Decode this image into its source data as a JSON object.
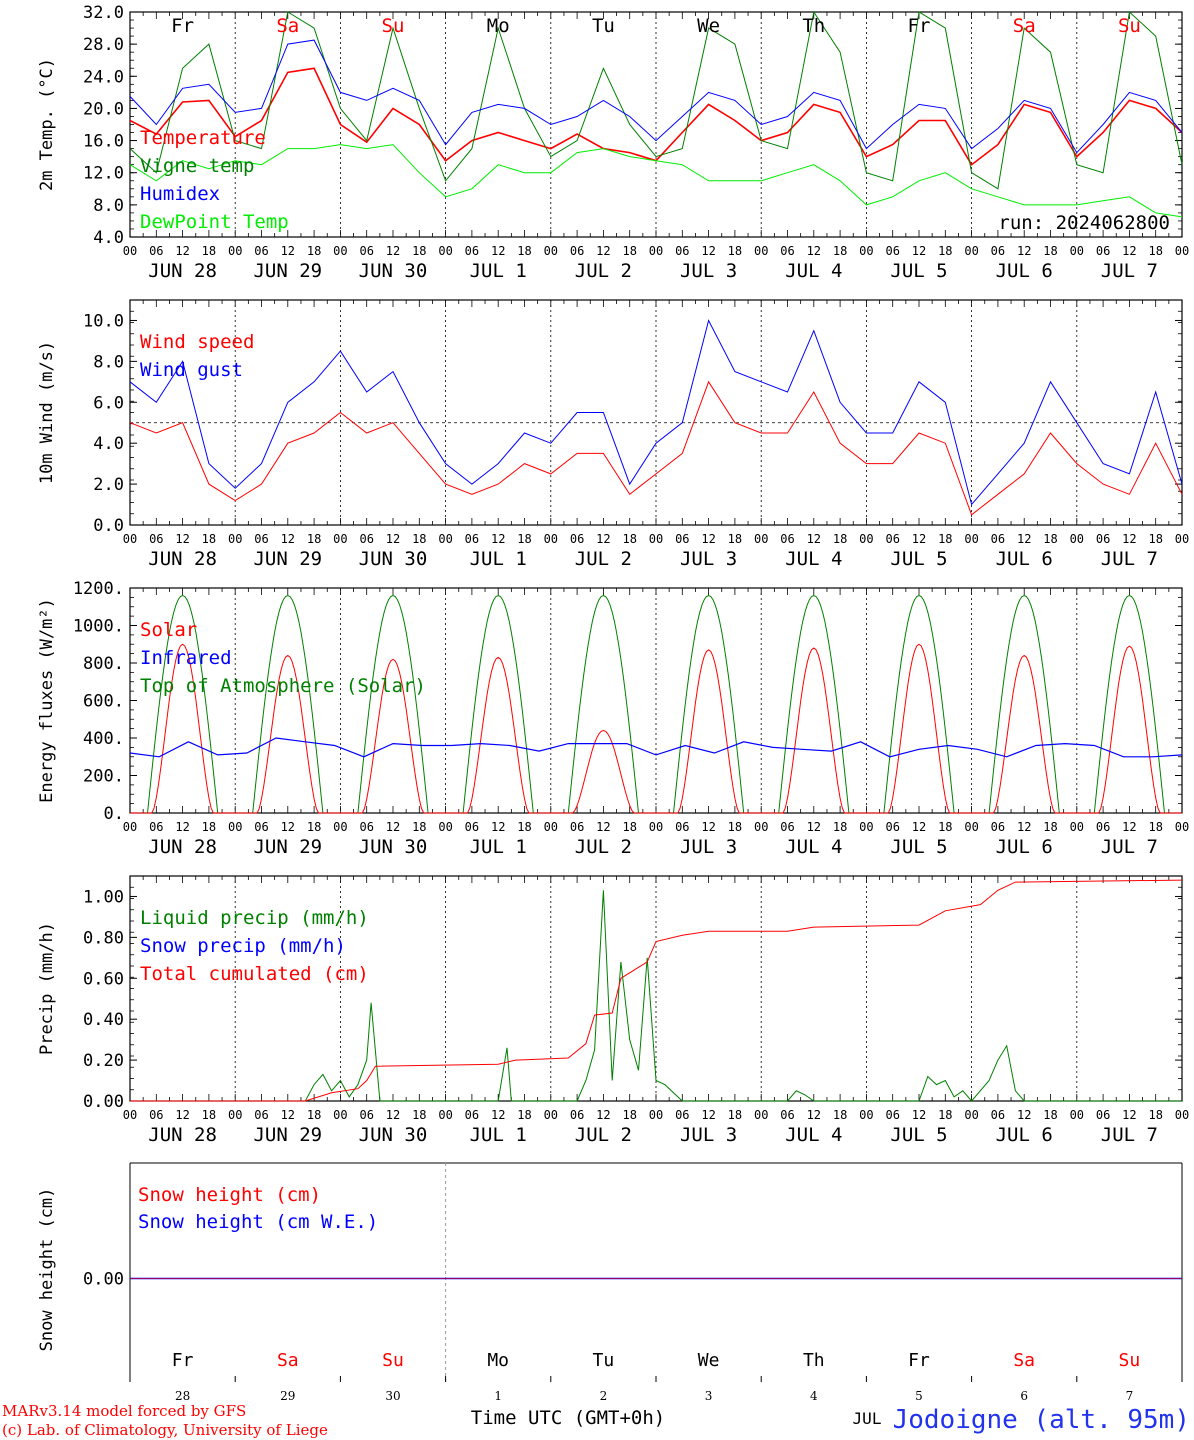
{
  "chart_data": [
    {
      "type": "line",
      "ylabel": "2m Temp. (°C)",
      "ylim": [
        4.0,
        32.0
      ],
      "yticks": [
        "4.0",
        "8.0",
        "12.0",
        "16.0",
        "20.0",
        "24.0",
        "28.0",
        "32.0"
      ],
      "legend_placement": "left",
      "day_names": [
        "Fr",
        "Sa",
        "Su",
        "Mo",
        "Tu",
        "We",
        "Th",
        "Fr",
        "Sa",
        "Su"
      ],
      "run_label": "run: 2024062800",
      "x_hours": [
        0,
        6,
        12,
        18,
        24,
        30,
        36,
        42,
        48,
        54,
        60,
        66,
        72,
        78,
        84,
        90,
        96,
        102,
        108,
        114,
        120,
        126,
        132,
        138,
        144,
        150,
        156,
        162,
        168,
        174,
        180,
        186,
        192,
        198,
        204,
        210,
        216,
        222,
        228,
        234,
        240
      ],
      "series": [
        {
          "name": "Temperature",
          "color": "#ff0000",
          "values": [
            18.5,
            16.8,
            20.8,
            21.0,
            16.5,
            18.5,
            24.5,
            25.0,
            18.0,
            15.8,
            20.0,
            18.0,
            13.5,
            16.0,
            17.0,
            16.0,
            15.0,
            16.8,
            15.0,
            14.5,
            13.5,
            17.0,
            20.5,
            18.5,
            16.0,
            17.0,
            20.5,
            19.5,
            14.0,
            15.5,
            18.5,
            18.5,
            13.0,
            15.5,
            20.5,
            19.5,
            14.0,
            17.0,
            21.0,
            20.0,
            17.0
          ]
        },
        {
          "name": "Vigne temp",
          "color": "#008000",
          "values": [
            15.0,
            12.0,
            25.0,
            28.0,
            16.0,
            15.0,
            32.0,
            30.0,
            20.0,
            16.0,
            30.0,
            20.0,
            11.0,
            15.0,
            30.0,
            20.0,
            14.0,
            16.0,
            25.0,
            18.0,
            14.0,
            15.0,
            30.0,
            28.0,
            16.0,
            15.0,
            32.0,
            27.0,
            12.0,
            11.0,
            32.0,
            30.0,
            12.0,
            10.0,
            30.0,
            27.0,
            13.0,
            12.0,
            32.0,
            29.0,
            13.0
          ]
        },
        {
          "name": "Humidex",
          "color": "#0000ff",
          "values": [
            21.5,
            18.0,
            22.5,
            23.0,
            19.5,
            20.0,
            28.0,
            28.5,
            22.0,
            21.0,
            22.5,
            21.0,
            15.5,
            19.5,
            20.5,
            20.0,
            18.0,
            19.0,
            21.0,
            19.0,
            16.0,
            19.0,
            22.0,
            21.0,
            18.0,
            19.0,
            22.0,
            21.0,
            15.0,
            18.0,
            20.5,
            20.0,
            15.0,
            17.5,
            21.0,
            20.0,
            14.5,
            18.0,
            22.0,
            21.0,
            17.0
          ]
        },
        {
          "name": "DewPoint Temp",
          "color": "#00ee00",
          "values": [
            13.0,
            11.0,
            13.5,
            12.5,
            13.5,
            13.0,
            15.0,
            15.0,
            15.5,
            15.0,
            15.5,
            12.0,
            9.0,
            10.0,
            13.0,
            12.0,
            12.0,
            14.5,
            15.0,
            14.0,
            13.5,
            13.0,
            11.0,
            11.0,
            11.0,
            12.0,
            13.0,
            11.0,
            8.0,
            9.0,
            11.0,
            12.0,
            10.0,
            9.0,
            8.0,
            8.0,
            8.0,
            8.5,
            9.0,
            7.0,
            6.5
          ]
        }
      ]
    },
    {
      "type": "line",
      "ylabel": "10m Wind (m/s)",
      "ylim": [
        0.0,
        11.0
      ],
      "yticks": [
        "0.0",
        "2.0",
        "4.0",
        "6.0",
        "8.0",
        "10.0"
      ],
      "reference_line": 5.0,
      "legend_placement": "left",
      "x_hours": [
        0,
        6,
        12,
        18,
        24,
        30,
        36,
        42,
        48,
        54,
        60,
        66,
        72,
        78,
        84,
        90,
        96,
        102,
        108,
        114,
        120,
        126,
        132,
        138,
        144,
        150,
        156,
        162,
        168,
        174,
        180,
        186,
        192,
        198,
        204,
        210,
        216,
        222,
        228,
        234,
        240
      ],
      "series": [
        {
          "name": "Wind speed",
          "color": "#ff0000",
          "values": [
            5.0,
            4.5,
            5.0,
            2.0,
            1.2,
            2.0,
            4.0,
            4.5,
            5.5,
            4.5,
            5.0,
            3.5,
            2.0,
            1.5,
            2.0,
            3.0,
            2.5,
            3.5,
            3.5,
            1.5,
            2.5,
            3.5,
            7.0,
            5.0,
            4.5,
            4.5,
            6.5,
            4.0,
            3.0,
            3.0,
            4.5,
            4.0,
            0.5,
            1.5,
            2.5,
            4.5,
            3.0,
            2.0,
            1.5,
            4.0,
            1.5
          ]
        },
        {
          "name": "Wind gust",
          "color": "#0000ff",
          "values": [
            7.0,
            6.0,
            8.0,
            3.0,
            1.8,
            3.0,
            6.0,
            7.0,
            8.5,
            6.5,
            7.5,
            5.0,
            3.0,
            2.0,
            3.0,
            4.5,
            4.0,
            5.5,
            5.5,
            2.0,
            4.0,
            5.0,
            10.0,
            7.5,
            7.0,
            6.5,
            9.5,
            6.0,
            4.5,
            4.5,
            7.0,
            6.0,
            1.0,
            2.5,
            4.0,
            7.0,
            5.0,
            3.0,
            2.5,
            6.5,
            2.0
          ]
        }
      ]
    },
    {
      "type": "line",
      "ylabel": "Energy fluxes (W/m²)",
      "ylim": [
        0,
        1200
      ],
      "yticks": [
        "0.",
        "200.",
        "400.",
        "600.",
        "800.",
        "1000.",
        "1200."
      ],
      "legend_placement": "left",
      "toa_peak": 1160,
      "solar_peaks": [
        900,
        840,
        820,
        830,
        440,
        870,
        880,
        900,
        840,
        890
      ],
      "series": [
        {
          "name": "Solar",
          "color": "#ff0000"
        },
        {
          "name": "Infrared",
          "color": "#0000ff",
          "values": [
            320,
            300,
            380,
            310,
            320,
            400,
            380,
            360,
            300,
            370,
            360,
            360,
            370,
            360,
            330,
            370,
            370,
            370,
            310,
            360,
            320,
            380,
            350,
            340,
            330,
            380,
            300,
            340,
            360,
            340,
            300,
            360,
            370,
            360,
            300,
            300,
            310
          ]
        },
        {
          "name": "Top of Atmosphere (Solar)",
          "color": "#008000"
        }
      ]
    },
    {
      "type": "line",
      "ylabel": "Precip (mm/h)",
      "ylim": [
        0.0,
        1.1
      ],
      "yticks": [
        "0.00",
        "0.20",
        "0.40",
        "0.60",
        "0.80",
        "1.00"
      ],
      "legend_placement": "left",
      "series": [
        {
          "name": "Liquid precip (mm/h)",
          "color": "#008000",
          "points": [
            [
              0,
              0
            ],
            [
              40,
              0
            ],
            [
              42,
              0.08
            ],
            [
              44,
              0.13
            ],
            [
              46,
              0.05
            ],
            [
              48,
              0.1
            ],
            [
              50,
              0.02
            ],
            [
              52,
              0.08
            ],
            [
              54,
              0.2
            ],
            [
              55,
              0.48
            ],
            [
              57,
              0
            ],
            [
              72,
              0
            ],
            [
              84,
              0
            ],
            [
              86,
              0.26
            ],
            [
              87,
              0
            ],
            [
              102,
              0
            ],
            [
              104,
              0.1
            ],
            [
              106,
              0.25
            ],
            [
              108,
              1.03
            ],
            [
              110,
              0.1
            ],
            [
              112,
              0.68
            ],
            [
              114,
              0.3
            ],
            [
              116,
              0.15
            ],
            [
              118,
              0.7
            ],
            [
              120,
              0.1
            ],
            [
              122,
              0.08
            ],
            [
              126,
              0
            ],
            [
              150,
              0
            ],
            [
              152,
              0.05
            ],
            [
              154,
              0.03
            ],
            [
              156,
              0
            ],
            [
              180,
              0
            ],
            [
              182,
              0.12
            ],
            [
              184,
              0.08
            ],
            [
              186,
              0.1
            ],
            [
              188,
              0.02
            ],
            [
              190,
              0.05
            ],
            [
              192,
              0
            ],
            [
              196,
              0.1
            ],
            [
              198,
              0.2
            ],
            [
              200,
              0.27
            ],
            [
              202,
              0.05
            ],
            [
              204,
              0
            ],
            [
              240,
              0
            ]
          ]
        },
        {
          "name": "Snow precip (mm/h)",
          "color": "#0000ff"
        },
        {
          "name": "Total cumulated (cm)",
          "color": "#ff0000",
          "points": [
            [
              0,
              0
            ],
            [
              40,
              0
            ],
            [
              46,
              0.04
            ],
            [
              52,
              0.06
            ],
            [
              54,
              0.1
            ],
            [
              56,
              0.17
            ],
            [
              84,
              0.18
            ],
            [
              88,
              0.2
            ],
            [
              100,
              0.21
            ],
            [
              104,
              0.28
            ],
            [
              106,
              0.42
            ],
            [
              110,
              0.43
            ],
            [
              112,
              0.6
            ],
            [
              118,
              0.68
            ],
            [
              120,
              0.78
            ],
            [
              126,
              0.81
            ],
            [
              132,
              0.83
            ],
            [
              150,
              0.83
            ],
            [
              156,
              0.85
            ],
            [
              180,
              0.86
            ],
            [
              186,
              0.93
            ],
            [
              194,
              0.96
            ],
            [
              198,
              1.03
            ],
            [
              202,
              1.07
            ],
            [
              240,
              1.08
            ]
          ]
        }
      ]
    },
    {
      "type": "line",
      "ylabel": "Snow height (cm)",
      "yticks": [
        "0.00"
      ],
      "legend_placement": "left",
      "series": [
        {
          "name": "Snow height (cm)",
          "color": "#ff0000"
        },
        {
          "name": "Snow height (cm W.E.)",
          "color": "#0000ff"
        }
      ],
      "day_names": [
        "Fr",
        "Sa",
        "Su",
        "Mo",
        "Tu",
        "We",
        "Th",
        "Fr",
        "Sa",
        "Su"
      ],
      "day_numbers": [
        "28",
        "29",
        "30",
        "1",
        "2",
        "3",
        "4",
        "5",
        "6",
        "7"
      ],
      "month_label": "JUL"
    }
  ],
  "date_labels": [
    "JUN 28",
    "JUN 29",
    "JUN 30",
    "JUL  1",
    "JUL  2",
    "JUL  3",
    "JUL  4",
    "JUL  5",
    "JUL  6",
    "JUL  7"
  ],
  "hour_labels": [
    "00",
    "06",
    "12",
    "18"
  ],
  "weekend_color": "#ff0000",
  "weekday_color": "#000000",
  "footer": {
    "model_text": "MARv3.14 model forced by GFS",
    "copyright_text": "(c) Lab. of Climatology, University of Liege",
    "time_label": "Time UTC (GMT+0h)",
    "location": "Jodoigne (alt. 95m)"
  }
}
